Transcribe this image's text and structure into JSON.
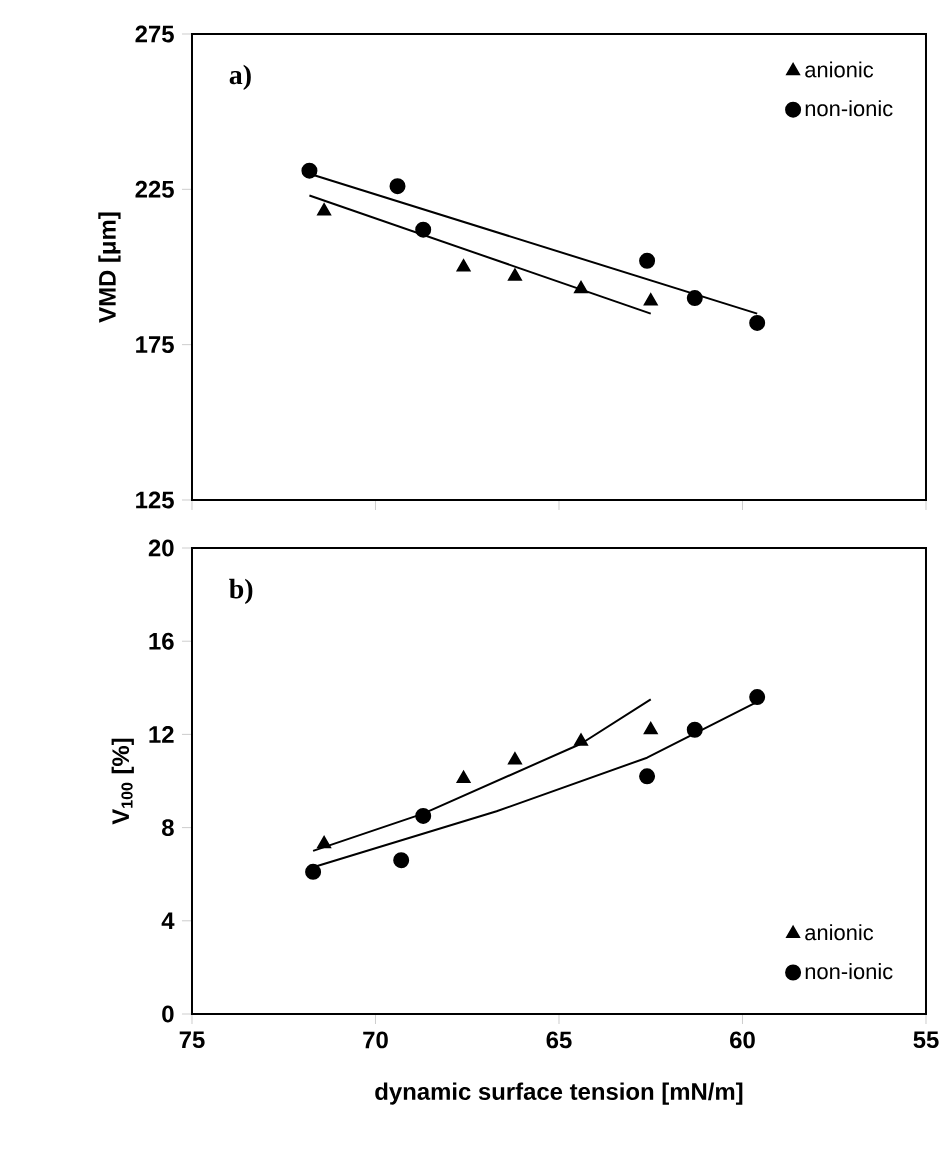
{
  "chart_data": [
    {
      "type": "scatter",
      "ylabel": "VMD [μm]",
      "annotations": [
        "a)"
      ],
      "xlim": [
        75,
        55
      ],
      "ylim": [
        125,
        275
      ],
      "xticks": [
        75,
        70,
        65,
        60,
        55
      ],
      "yticks": [
        125,
        175,
        225,
        275
      ],
      "tick_labels": "y",
      "legend": "top right",
      "series": [
        {
          "name": "anionic",
          "color": "#000000",
          "marker": "triangle",
          "x": [
            71.4,
            67.6,
            66.2,
            64.4,
            62.5
          ],
          "values": [
            218,
            200,
            197,
            193,
            189
          ]
        },
        {
          "name": "non-ionic",
          "color": "#000000",
          "marker": "circle",
          "x": [
            71.8,
            69.4,
            68.7,
            62.6,
            61.3,
            59.6
          ],
          "values": [
            231,
            226,
            212,
            202,
            190,
            182
          ]
        },
        {
          "type": "line",
          "color": "#000000",
          "marker": "none",
          "x": [
            71.8,
            62.5
          ],
          "values": [
            223,
            185
          ]
        },
        {
          "type": "line",
          "color": "#000000",
          "marker": "none",
          "x": [
            71.8,
            59.6
          ],
          "values": [
            230,
            185
          ]
        }
      ]
    },
    {
      "type": "scatter",
      "xlabel": "dynamic surface tension [mN/m]",
      "ylabel": "V$_{100}$ [%]",
      "annotations": [
        "b)"
      ],
      "xlim": [
        75,
        55
      ],
      "ylim": [
        0,
        20
      ],
      "xticks": [
        75,
        70,
        65,
        60,
        55
      ],
      "yticks": [
        0,
        4,
        8,
        12,
        16,
        20
      ],
      "legend": "bottom right",
      "series": [
        {
          "name": "anionic",
          "color": "#000000",
          "marker": "triangle",
          "x": [
            71.4,
            67.6,
            66.2,
            64.4,
            62.5
          ],
          "values": [
            7.3,
            10.1,
            10.9,
            11.7,
            12.2
          ]
        },
        {
          "name": "non-ionic",
          "color": "#000000",
          "marker": "circle",
          "x": [
            71.7,
            69.3,
            68.7,
            62.6,
            61.3,
            59.6
          ],
          "values": [
            6.1,
            6.6,
            8.5,
            10.2,
            12.2,
            13.6
          ]
        },
        {
          "type": "line",
          "color": "#000000",
          "marker": "none",
          "x": [
            71.7,
            68.7,
            64.4,
            62.5
          ],
          "values": [
            7.0,
            8.6,
            11.6,
            13.5
          ]
        },
        {
          "type": "line",
          "color": "#000000",
          "marker": "none",
          "x": [
            71.7,
            66.7,
            62.6,
            59.6
          ],
          "values": [
            6.3,
            8.7,
            11.0,
            13.4
          ]
        }
      ]
    }
  ]
}
